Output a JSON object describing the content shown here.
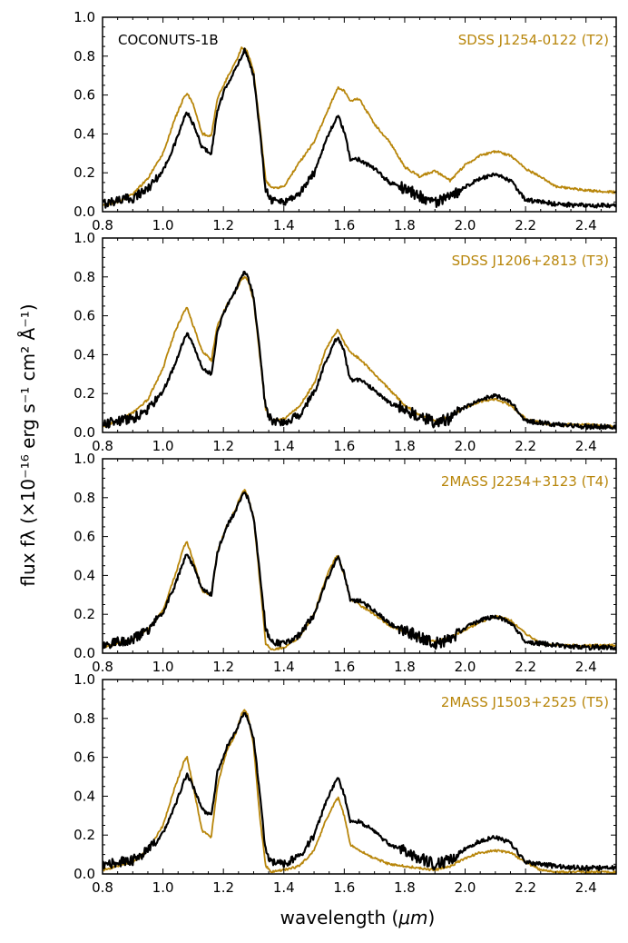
{
  "figure": {
    "xlabel_prefix": "wavelength (",
    "xlabel_unit": "μm",
    "xlabel_suffix": ")",
    "ylabel": "flux fλ (×10⁻¹⁶ erg s⁻¹ cm² Å⁻¹)",
    "colors": {
      "object": "#000000",
      "template": "#b8860b"
    }
  },
  "chart_data": [
    {
      "type": "line",
      "object_label": "COCONUTS-1B",
      "template_label": "SDSS J1254-0122 (T2)",
      "xlim": [
        0.8,
        2.5
      ],
      "ylim": [
        0.0,
        1.0
      ],
      "xticks": [
        "0.8",
        "1.0",
        "1.2",
        "1.4",
        "1.6",
        "1.8",
        "2.0",
        "2.2",
        "2.4"
      ],
      "yticks": [
        "0.0",
        "0.2",
        "0.4",
        "0.6",
        "0.8",
        "1.0"
      ],
      "series": [
        {
          "name": "COCONUTS-1B",
          "x": [
            0.8,
            0.85,
            0.9,
            0.95,
            1.0,
            1.04,
            1.07,
            1.08,
            1.1,
            1.13,
            1.16,
            1.18,
            1.21,
            1.24,
            1.26,
            1.27,
            1.28,
            1.3,
            1.32,
            1.34,
            1.36,
            1.4,
            1.45,
            1.5,
            1.54,
            1.57,
            1.58,
            1.6,
            1.62,
            1.65,
            1.7,
            1.75,
            1.8,
            1.85,
            1.9,
            1.95,
            2.0,
            2.05,
            2.1,
            2.15,
            2.2,
            2.25,
            2.3,
            2.4,
            2.5
          ],
          "values": [
            0.04,
            0.06,
            0.07,
            0.12,
            0.21,
            0.35,
            0.48,
            0.51,
            0.45,
            0.33,
            0.3,
            0.52,
            0.65,
            0.73,
            0.8,
            0.83,
            0.8,
            0.7,
            0.42,
            0.12,
            0.06,
            0.05,
            0.09,
            0.2,
            0.37,
            0.47,
            0.49,
            0.41,
            0.27,
            0.27,
            0.22,
            0.15,
            0.12,
            0.08,
            0.05,
            0.07,
            0.13,
            0.17,
            0.19,
            0.16,
            0.06,
            0.05,
            0.04,
            0.03,
            0.03
          ]
        },
        {
          "name": "SDSS J1254-0122 (T2)",
          "x": [
            0.8,
            0.85,
            0.9,
            0.95,
            1.0,
            1.04,
            1.07,
            1.08,
            1.1,
            1.13,
            1.16,
            1.18,
            1.21,
            1.24,
            1.26,
            1.27,
            1.28,
            1.3,
            1.32,
            1.34,
            1.36,
            1.4,
            1.45,
            1.5,
            1.54,
            1.57,
            1.58,
            1.6,
            1.62,
            1.65,
            1.7,
            1.75,
            1.8,
            1.85,
            1.9,
            1.95,
            2.0,
            2.05,
            2.1,
            2.15,
            2.2,
            2.25,
            2.3,
            2.4,
            2.5
          ],
          "values": [
            0.03,
            0.05,
            0.09,
            0.17,
            0.3,
            0.48,
            0.59,
            0.61,
            0.55,
            0.4,
            0.39,
            0.58,
            0.68,
            0.77,
            0.84,
            0.84,
            0.82,
            0.72,
            0.45,
            0.16,
            0.12,
            0.13,
            0.25,
            0.36,
            0.5,
            0.61,
            0.64,
            0.62,
            0.57,
            0.58,
            0.45,
            0.36,
            0.23,
            0.18,
            0.21,
            0.16,
            0.24,
            0.29,
            0.31,
            0.29,
            0.22,
            0.18,
            0.13,
            0.11,
            0.1
          ]
        }
      ]
    },
    {
      "type": "line",
      "object_label": "",
      "template_label": "SDSS J1206+2813 (T3)",
      "xlim": [
        0.8,
        2.5
      ],
      "ylim": [
        0.0,
        1.0
      ],
      "xticks": [
        "0.8",
        "1.0",
        "1.2",
        "1.4",
        "1.6",
        "1.8",
        "2.0",
        "2.2",
        "2.4"
      ],
      "yticks": [
        "0.0",
        "0.2",
        "0.4",
        "0.6",
        "0.8",
        "1.0"
      ],
      "series": [
        {
          "name": "COCONUTS-1B",
          "x": [
            0.8,
            0.85,
            0.9,
            0.95,
            1.0,
            1.04,
            1.07,
            1.08,
            1.1,
            1.13,
            1.16,
            1.18,
            1.21,
            1.24,
            1.26,
            1.27,
            1.28,
            1.3,
            1.32,
            1.34,
            1.36,
            1.4,
            1.45,
            1.5,
            1.54,
            1.57,
            1.58,
            1.6,
            1.62,
            1.65,
            1.7,
            1.75,
            1.8,
            1.85,
            1.9,
            1.95,
            2.0,
            2.05,
            2.1,
            2.15,
            2.2,
            2.25,
            2.3,
            2.4,
            2.5
          ],
          "values": [
            0.04,
            0.06,
            0.07,
            0.12,
            0.21,
            0.35,
            0.48,
            0.51,
            0.45,
            0.33,
            0.3,
            0.52,
            0.65,
            0.73,
            0.8,
            0.83,
            0.8,
            0.7,
            0.42,
            0.12,
            0.06,
            0.05,
            0.09,
            0.2,
            0.37,
            0.47,
            0.49,
            0.41,
            0.27,
            0.27,
            0.22,
            0.15,
            0.12,
            0.08,
            0.05,
            0.07,
            0.13,
            0.17,
            0.19,
            0.16,
            0.06,
            0.05,
            0.04,
            0.03,
            0.03
          ]
        },
        {
          "name": "SDSS J1206+2813 (T3)",
          "x": [
            0.8,
            0.85,
            0.9,
            0.95,
            1.0,
            1.04,
            1.07,
            1.08,
            1.1,
            1.13,
            1.16,
            1.18,
            1.21,
            1.24,
            1.26,
            1.27,
            1.28,
            1.3,
            1.32,
            1.34,
            1.36,
            1.4,
            1.45,
            1.5,
            1.54,
            1.57,
            1.58,
            1.6,
            1.62,
            1.65,
            1.7,
            1.75,
            1.8,
            1.85,
            1.9,
            1.95,
            2.0,
            2.05,
            2.1,
            2.15,
            2.2,
            2.25,
            2.3,
            2.4,
            2.5
          ],
          "values": [
            0.03,
            0.06,
            0.1,
            0.17,
            0.33,
            0.52,
            0.62,
            0.64,
            0.55,
            0.42,
            0.37,
            0.55,
            0.65,
            0.73,
            0.79,
            0.8,
            0.79,
            0.68,
            0.4,
            0.12,
            0.06,
            0.07,
            0.13,
            0.25,
            0.43,
            0.51,
            0.53,
            0.46,
            0.41,
            0.38,
            0.3,
            0.22,
            0.14,
            0.09,
            0.06,
            0.08,
            0.13,
            0.16,
            0.17,
            0.14,
            0.07,
            0.05,
            0.04,
            0.04,
            0.03
          ]
        }
      ]
    },
    {
      "type": "line",
      "object_label": "",
      "template_label": "2MASS J2254+3123 (T4)",
      "xlim": [
        0.8,
        2.5
      ],
      "ylim": [
        0.0,
        1.0
      ],
      "xticks": [
        "0.8",
        "1.0",
        "1.2",
        "1.4",
        "1.6",
        "1.8",
        "2.0",
        "2.2",
        "2.4"
      ],
      "yticks": [
        "0.0",
        "0.2",
        "0.4",
        "0.6",
        "0.8",
        "1.0"
      ],
      "series": [
        {
          "name": "COCONUTS-1B",
          "x": [
            0.8,
            0.85,
            0.9,
            0.95,
            1.0,
            1.04,
            1.07,
            1.08,
            1.1,
            1.13,
            1.16,
            1.18,
            1.21,
            1.24,
            1.26,
            1.27,
            1.28,
            1.3,
            1.32,
            1.34,
            1.36,
            1.4,
            1.45,
            1.5,
            1.54,
            1.57,
            1.58,
            1.6,
            1.62,
            1.65,
            1.7,
            1.75,
            1.8,
            1.85,
            1.9,
            1.95,
            2.0,
            2.05,
            2.1,
            2.15,
            2.2,
            2.25,
            2.3,
            2.4,
            2.5
          ],
          "values": [
            0.04,
            0.06,
            0.07,
            0.12,
            0.21,
            0.35,
            0.48,
            0.51,
            0.45,
            0.33,
            0.3,
            0.52,
            0.65,
            0.73,
            0.8,
            0.83,
            0.8,
            0.7,
            0.42,
            0.12,
            0.06,
            0.05,
            0.09,
            0.2,
            0.37,
            0.47,
            0.49,
            0.41,
            0.27,
            0.27,
            0.22,
            0.15,
            0.12,
            0.08,
            0.05,
            0.07,
            0.13,
            0.17,
            0.19,
            0.16,
            0.06,
            0.05,
            0.04,
            0.03,
            0.03
          ]
        },
        {
          "name": "2MASS J2254+3123 (T4)",
          "x": [
            0.8,
            0.85,
            0.9,
            0.95,
            1.0,
            1.04,
            1.07,
            1.08,
            1.1,
            1.13,
            1.16,
            1.18,
            1.21,
            1.24,
            1.26,
            1.27,
            1.28,
            1.3,
            1.32,
            1.34,
            1.36,
            1.4,
            1.45,
            1.5,
            1.54,
            1.57,
            1.58,
            1.6,
            1.62,
            1.65,
            1.7,
            1.75,
            1.8,
            1.85,
            1.9,
            1.95,
            2.0,
            2.05,
            2.1,
            2.15,
            2.2,
            2.25,
            2.3,
            2.4,
            2.5
          ],
          "values": [
            0.03,
            0.05,
            0.07,
            0.12,
            0.22,
            0.4,
            0.55,
            0.57,
            0.48,
            0.32,
            0.3,
            0.52,
            0.65,
            0.74,
            0.82,
            0.84,
            0.81,
            0.7,
            0.38,
            0.05,
            0.02,
            0.03,
            0.08,
            0.2,
            0.39,
            0.49,
            0.5,
            0.4,
            0.28,
            0.25,
            0.2,
            0.14,
            0.11,
            0.08,
            0.06,
            0.08,
            0.12,
            0.16,
            0.19,
            0.17,
            0.1,
            0.05,
            0.04,
            0.04,
            0.04
          ]
        }
      ]
    },
    {
      "type": "line",
      "object_label": "",
      "template_label": "2MASS J1503+2525 (T5)",
      "xlim": [
        0.8,
        2.5
      ],
      "ylim": [
        0.0,
        1.0
      ],
      "xticks": [
        "0.8",
        "1.0",
        "1.2",
        "1.4",
        "1.6",
        "1.8",
        "2.0",
        "2.2",
        "2.4"
      ],
      "yticks": [
        "0.0",
        "0.2",
        "0.4",
        "0.6",
        "0.8",
        "1.0"
      ],
      "series": [
        {
          "name": "COCONUTS-1B",
          "x": [
            0.8,
            0.85,
            0.9,
            0.95,
            1.0,
            1.04,
            1.07,
            1.08,
            1.1,
            1.13,
            1.16,
            1.18,
            1.21,
            1.24,
            1.26,
            1.27,
            1.28,
            1.3,
            1.32,
            1.34,
            1.36,
            1.4,
            1.45,
            1.5,
            1.54,
            1.57,
            1.58,
            1.6,
            1.62,
            1.65,
            1.7,
            1.75,
            1.8,
            1.85,
            1.9,
            1.95,
            2.0,
            2.05,
            2.1,
            2.15,
            2.2,
            2.25,
            2.3,
            2.4,
            2.5
          ],
          "values": [
            0.04,
            0.06,
            0.07,
            0.12,
            0.21,
            0.35,
            0.48,
            0.51,
            0.45,
            0.33,
            0.3,
            0.52,
            0.65,
            0.73,
            0.8,
            0.83,
            0.8,
            0.7,
            0.42,
            0.12,
            0.06,
            0.05,
            0.09,
            0.2,
            0.37,
            0.47,
            0.49,
            0.41,
            0.27,
            0.27,
            0.22,
            0.15,
            0.12,
            0.08,
            0.05,
            0.07,
            0.13,
            0.17,
            0.19,
            0.16,
            0.06,
            0.05,
            0.04,
            0.03,
            0.03
          ]
        },
        {
          "name": "2MASS J1503+2525 (T5)",
          "x": [
            0.8,
            0.85,
            0.9,
            0.95,
            1.0,
            1.04,
            1.07,
            1.08,
            1.1,
            1.13,
            1.16,
            1.18,
            1.21,
            1.24,
            1.26,
            1.27,
            1.28,
            1.3,
            1.32,
            1.34,
            1.36,
            1.4,
            1.45,
            1.5,
            1.54,
            1.57,
            1.58,
            1.6,
            1.62,
            1.65,
            1.7,
            1.75,
            1.8,
            1.85,
            1.9,
            1.95,
            2.0,
            2.05,
            2.1,
            2.15,
            2.2,
            2.25,
            2.3,
            2.4,
            2.5
          ],
          "values": [
            0.02,
            0.04,
            0.06,
            0.12,
            0.25,
            0.45,
            0.58,
            0.6,
            0.45,
            0.22,
            0.19,
            0.45,
            0.63,
            0.72,
            0.82,
            0.84,
            0.82,
            0.66,
            0.3,
            0.04,
            0.01,
            0.02,
            0.04,
            0.12,
            0.28,
            0.37,
            0.39,
            0.3,
            0.15,
            0.12,
            0.08,
            0.05,
            0.04,
            0.03,
            0.02,
            0.04,
            0.08,
            0.11,
            0.12,
            0.11,
            0.06,
            0.02,
            0.01,
            0.01,
            0.01
          ]
        }
      ]
    }
  ]
}
